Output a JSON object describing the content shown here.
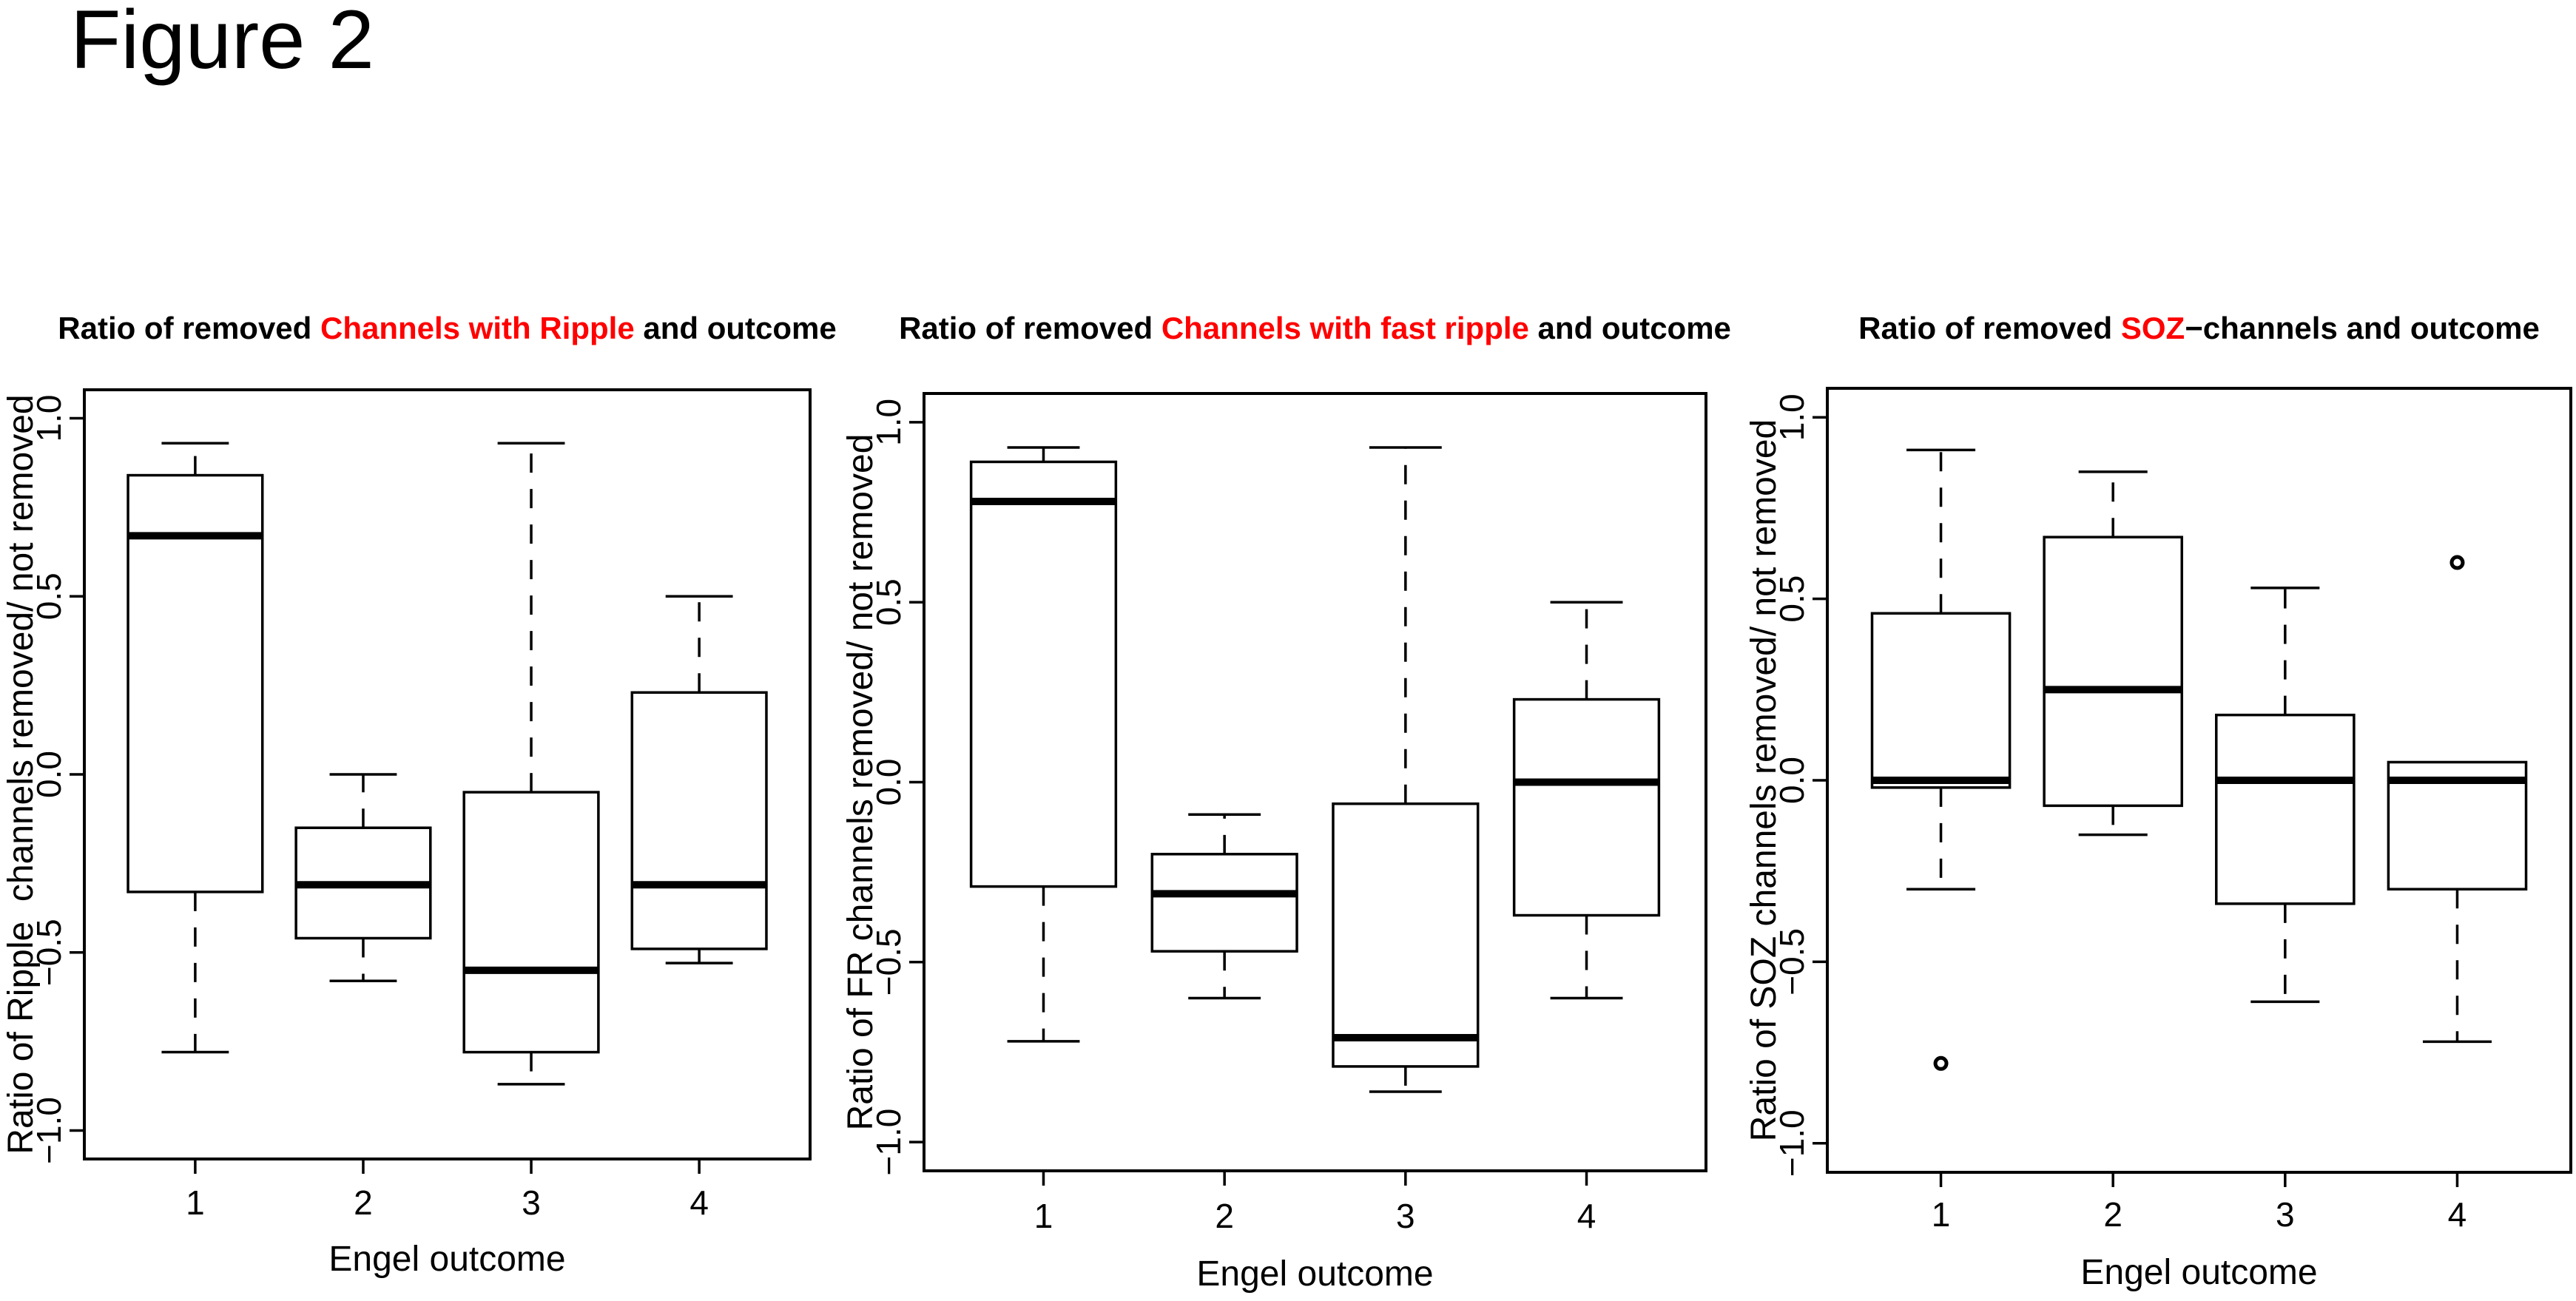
{
  "figure_label": "Figure 2",
  "colors": {
    "ink": "#000000",
    "accent_red": "#ff0000",
    "background": "#ffffff"
  },
  "chart_data": [
    {
      "type": "boxplot",
      "title_parts": [
        {
          "text": "Ratio of removed ",
          "color": "#000000"
        },
        {
          "text": "Channels with Ripple",
          "color": "#ff0000"
        },
        {
          "text": " and outcome",
          "color": "#000000"
        }
      ],
      "xlabel": "Engel outcome",
      "ylabel": "Ratio of Ripple  channels removed/ not removed",
      "categories": [
        "1",
        "2",
        "3",
        "4"
      ],
      "ylim": [
        -1.0,
        1.0
      ],
      "yticks": [
        {
          "value": 1.0,
          "label": "1.0"
        },
        {
          "value": 0.5,
          "label": "0.5"
        },
        {
          "value": 0.0,
          "label": "0.0"
        },
        {
          "value": -0.5,
          "label": "−0.5"
        },
        {
          "value": -1.0,
          "label": "−1.0"
        }
      ],
      "boxes": [
        {
          "category": "1",
          "whisker_low": -0.78,
          "q1": -0.33,
          "median": 0.67,
          "q3": 0.84,
          "whisker_high": 0.93,
          "outliers": []
        },
        {
          "category": "2",
          "whisker_low": -0.58,
          "q1": -0.46,
          "median": -0.31,
          "q3": -0.15,
          "whisker_high": 0.0,
          "outliers": []
        },
        {
          "category": "3",
          "whisker_low": -0.87,
          "q1": -0.78,
          "median": -0.55,
          "q3": -0.05,
          "whisker_high": 0.93,
          "outliers": []
        },
        {
          "category": "4",
          "whisker_low": -0.53,
          "q1": -0.49,
          "median": -0.31,
          "q3": 0.23,
          "whisker_high": 0.5,
          "outliers": []
        }
      ]
    },
    {
      "type": "boxplot",
      "title_parts": [
        {
          "text": "Ratio of removed ",
          "color": "#000000"
        },
        {
          "text": "Channels with fast ripple",
          "color": "#ff0000"
        },
        {
          "text": " and outcome",
          "color": "#000000"
        }
      ],
      "xlabel": "Engel outcome",
      "ylabel": "Ratio of FR channels removed/ not removed",
      "categories": [
        "1",
        "2",
        "3",
        "4"
      ],
      "ylim": [
        -1.0,
        1.0
      ],
      "yticks": [
        {
          "value": 1.0,
          "label": "1.0"
        },
        {
          "value": 0.5,
          "label": "0.5"
        },
        {
          "value": 0.0,
          "label": "0.0"
        },
        {
          "value": -0.5,
          "label": "−0.5"
        },
        {
          "value": -1.0,
          "label": "−1.0"
        }
      ],
      "boxes": [
        {
          "category": "1",
          "whisker_low": -0.72,
          "q1": -0.29,
          "median": 0.78,
          "q3": 0.89,
          "whisker_high": 0.93,
          "outliers": []
        },
        {
          "category": "2",
          "whisker_low": -0.6,
          "q1": -0.47,
          "median": -0.31,
          "q3": -0.2,
          "whisker_high": -0.09,
          "outliers": []
        },
        {
          "category": "3",
          "whisker_low": -0.86,
          "q1": -0.79,
          "median": -0.71,
          "q3": -0.06,
          "whisker_high": 0.93,
          "outliers": []
        },
        {
          "category": "4",
          "whisker_low": -0.6,
          "q1": -0.37,
          "median": 0.0,
          "q3": 0.23,
          "whisker_high": 0.5,
          "outliers": []
        }
      ]
    },
    {
      "type": "boxplot",
      "title_parts": [
        {
          "text": "Ratio of removed ",
          "color": "#000000"
        },
        {
          "text": "SOZ",
          "color": "#ff0000"
        },
        {
          "text": "−channels and outcome",
          "color": "#000000"
        }
      ],
      "xlabel": "Engel outcome",
      "ylabel": "Ratio of SOZ channels removed/ not removed",
      "categories": [
        "1",
        "2",
        "3",
        "4"
      ],
      "ylim": [
        -1.0,
        1.0
      ],
      "yticks": [
        {
          "value": 1.0,
          "label": "1.0"
        },
        {
          "value": 0.5,
          "label": "0.5"
        },
        {
          "value": 0.0,
          "label": "0.0"
        },
        {
          "value": -0.5,
          "label": "−0.5"
        },
        {
          "value": -1.0,
          "label": "−1.0"
        }
      ],
      "boxes": [
        {
          "category": "1",
          "whisker_low": -0.3,
          "q1": -0.02,
          "median": 0.0,
          "q3": 0.46,
          "whisker_high": 0.91,
          "outliers": [
            -0.78
          ]
        },
        {
          "category": "2",
          "whisker_low": -0.15,
          "q1": -0.07,
          "median": 0.25,
          "q3": 0.67,
          "whisker_high": 0.85,
          "outliers": []
        },
        {
          "category": "3",
          "whisker_low": -0.61,
          "q1": -0.34,
          "median": 0.0,
          "q3": 0.18,
          "whisker_high": 0.53,
          "outliers": []
        },
        {
          "category": "4",
          "whisker_low": -0.72,
          "q1": -0.3,
          "median": 0.0,
          "q3": 0.05,
          "whisker_high": 0.05,
          "outliers": [
            0.6
          ]
        }
      ]
    }
  ]
}
